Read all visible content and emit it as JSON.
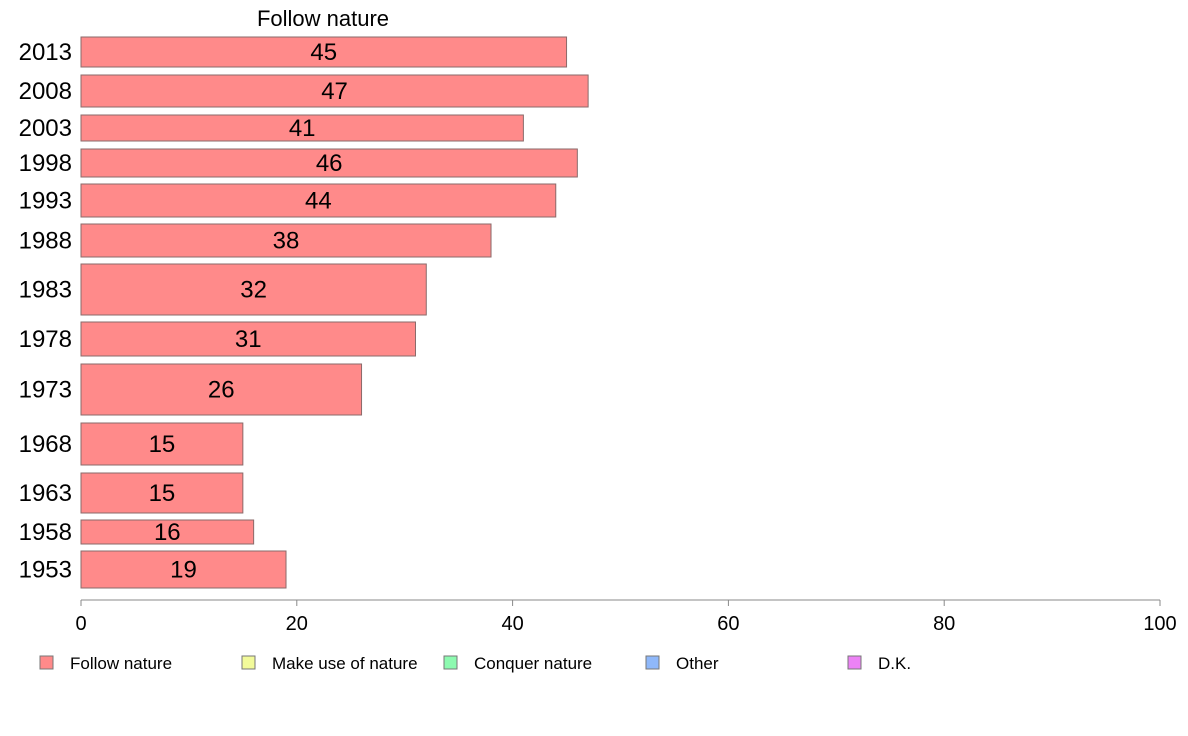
{
  "chart_data": {
    "type": "bar",
    "orientation": "horizontal",
    "title": "Follow nature",
    "categories": [
      "2013",
      "2008",
      "2003",
      "1998",
      "1993",
      "1988",
      "1983",
      "1978",
      "1973",
      "1968",
      "1963",
      "1958",
      "1953"
    ],
    "values": [
      45,
      47,
      41,
      46,
      44,
      38,
      32,
      31,
      26,
      15,
      15,
      16,
      19
    ],
    "xlim": [
      0,
      100
    ],
    "xticks": [
      0,
      20,
      40,
      60,
      80,
      100
    ],
    "grid": false,
    "legend_position": "bottom",
    "colors": {
      "follow_nature": "#ff8a8a",
      "make_use": "#f2fa9a",
      "conquer": "#8dfab0",
      "other": "#8fb8fa",
      "dk": "#ec82f5",
      "stroke": "#8a6a6a"
    },
    "legend": [
      {
        "label": "Follow nature",
        "color": "#ff8a8a"
      },
      {
        "label": "Make use of nature",
        "color": "#f2fa9a"
      },
      {
        "label": "Conquer nature",
        "color": "#8dfab0"
      },
      {
        "label": "Other",
        "color": "#8fb8fa"
      },
      {
        "label": "D.K.",
        "color": "#ec82f5"
      }
    ]
  }
}
